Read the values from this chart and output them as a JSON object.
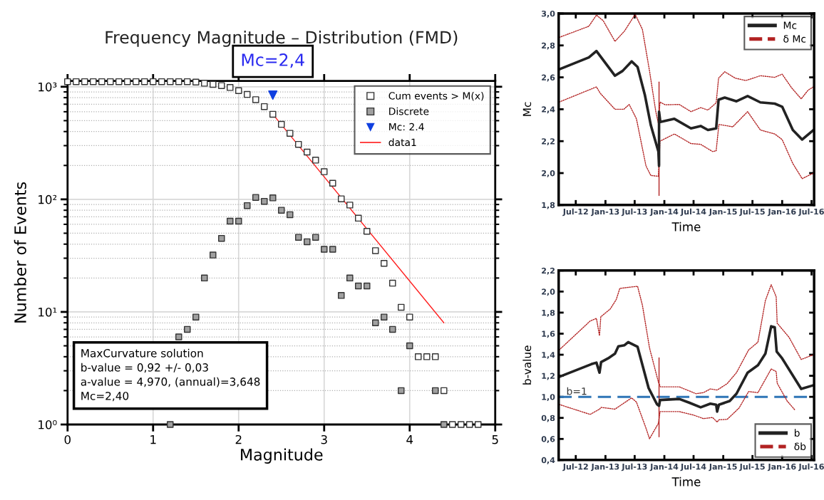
{
  "chart_data": [
    {
      "type": "scatter",
      "title": "Frequency Magnitude – Distribution (FMD)",
      "xlabel": "Magnitude",
      "ylabel": "Number of Events",
      "xlim": [
        0,
        5
      ],
      "xticks": [
        0,
        1,
        2,
        3,
        4,
        5
      ],
      "ylim": [
        1,
        1125
      ],
      "yticks": [
        {
          "value": 1,
          "label": "10⁰"
        },
        {
          "value": 10,
          "label": "10¹"
        },
        {
          "value": 100,
          "label": "10²"
        },
        {
          "value": 1000,
          "label": "10³"
        }
      ],
      "log": "y",
      "grid": true,
      "legend": "top right",
      "series": [
        {
          "name": "Cum events > M(x)",
          "type": "scatter",
          "marker": "square",
          "color": "#ffffff",
          "x": [
            0.0,
            0.1,
            0.2,
            0.3,
            0.4,
            0.5,
            0.6,
            0.7,
            0.8,
            0.9,
            1.0,
            1.1,
            1.2,
            1.3,
            1.4,
            1.5,
            1.6,
            1.7,
            1.8,
            1.9,
            2.0,
            2.1,
            2.2,
            2.3,
            2.4,
            2.5,
            2.6,
            2.7,
            2.8,
            2.9,
            3.0,
            3.1,
            3.2,
            3.3,
            3.4,
            3.5,
            3.6,
            3.7,
            3.8,
            3.9,
            4.0,
            4.1,
            4.2,
            4.3,
            4.4,
            4.5,
            4.6,
            4.7,
            4.8
          ],
          "values": [
            1110,
            1110,
            1110,
            1110,
            1110,
            1110,
            1110,
            1110,
            1110,
            1110,
            1110,
            1110,
            1110,
            1110,
            1110,
            1100,
            1076,
            1050,
            1024,
            985,
            924,
            855,
            768,
            666,
            570,
            464,
            386,
            308,
            263,
            223,
            176,
            139,
            101,
            89,
            68,
            52,
            35,
            27,
            18,
            11,
            9,
            4,
            4,
            4,
            2,
            1,
            1,
            1,
            1
          ]
        },
        {
          "name": "Discrete",
          "type": "scatter",
          "marker": "square",
          "color": "#a0a0a0",
          "x": [
            1.2,
            1.3,
            1.4,
            1.5,
            1.6,
            1.7,
            1.8,
            1.9,
            2.0,
            2.1,
            2.2,
            2.3,
            2.4,
            2.5,
            2.6,
            2.7,
            2.8,
            2.9,
            3.0,
            3.1,
            3.2,
            3.3,
            3.4,
            3.5,
            3.6,
            3.7,
            3.8,
            3.9,
            4.0,
            4.3,
            4.4
          ],
          "values": [
            1,
            6,
            7,
            9,
            20,
            32,
            45,
            64,
            64,
            88,
            104,
            96,
            103,
            80,
            73,
            46,
            42,
            46,
            36,
            36,
            14,
            20,
            17,
            17,
            8,
            9,
            7,
            2,
            5,
            2,
            1
          ]
        },
        {
          "name": "Mc: 2.4",
          "type": "scatter",
          "marker": "triangle",
          "color": "#1040e0",
          "x": [
            2.4
          ],
          "values": [
            842
          ]
        },
        {
          "name": "data1",
          "type": "line",
          "color": "#ff2020",
          "x": [
            2.4,
            4.4
          ],
          "values": [
            570,
            8
          ]
        }
      ],
      "annotations": [
        {
          "text": "Mc=2,4",
          "x": 2.4,
          "y": 842
        },
        "MaxCurvature solution\nb-value = 0,92 +/- 0,03\na-value = 4,970, (annual)=3,648\nMc=2,40"
      ]
    },
    {
      "type": "line",
      "xlabel": "Time",
      "ylabel": "Mc",
      "xlim": [
        "2012-03-17",
        "2016-07-17"
      ],
      "xticks": [
        {
          "value": "2012-07-01",
          "label": "Jul-12"
        },
        {
          "value": "2013-01-01",
          "label": "Jan-13"
        },
        {
          "value": "2013-07-01",
          "label": "Jul-13"
        },
        {
          "value": "2014-01-01",
          "label": "Jan-14"
        },
        {
          "value": "2014-07-01",
          "label": "Jul-14"
        },
        {
          "value": "2015-01-01",
          "label": "Jan-15"
        },
        {
          "value": "2015-07-01",
          "label": "Jul-15"
        },
        {
          "value": "2016-01-01",
          "label": "Jan-16"
        },
        {
          "value": "2016-07-01",
          "label": "Jul-16"
        }
      ],
      "ylim": [
        1.8,
        3.0
      ],
      "yticks": [
        {
          "value": 1.8,
          "label": "1,8"
        },
        {
          "value": 2.0,
          "label": "2,0"
        },
        {
          "value": 2.2,
          "label": "2,2"
        },
        {
          "value": 2.4,
          "label": "2,4"
        },
        {
          "value": 2.6,
          "label": "2,6"
        },
        {
          "value": 2.8,
          "label": "2,8"
        },
        {
          "value": 3.0,
          "label": "3,0"
        }
      ],
      "legend": "top right",
      "series": [
        {
          "type": "line",
          "line_style": "dotted",
          "color": "#b22222",
          "x": [
            "2012-03-20",
            "2012-11-06",
            "2012-11-30",
            "2013-03-01",
            "2013-04-25",
            "2013-05-28",
            "2013-07-12",
            "2013-09-09",
            "2013-10-09",
            "2013-11-25",
            "2013-12-05",
            "2014-03-04",
            "2014-06-15",
            "2014-08-14",
            "2014-10-27",
            "2014-11-18",
            "2014-12-05",
            "2015-03-01",
            "2015-06-01",
            "2015-08-19",
            "2015-11-16",
            "2016-01-01",
            "2016-03-07",
            "2016-05-04",
            "2016-07-13"
          ],
          "values": [
            2.445,
            2.54,
            2.5,
            2.4,
            2.4,
            2.43,
            2.34,
            2.045,
            1.985,
            1.98,
            2.2,
            2.245,
            2.185,
            2.18,
            2.135,
            2.14,
            2.305,
            2.29,
            2.385,
            2.27,
            2.245,
            2.21,
            2.06,
            1.965,
            2.0
          ]
        },
        {
          "name": "δ Mc",
          "type": "line",
          "line_style": "dotted",
          "color": "#b22222",
          "x": [
            "2012-03-20",
            "2012-09-20",
            "2012-11-06",
            "2012-12-18",
            "2013-03-01",
            "2013-04-29",
            "2013-07-04",
            "2013-08-18",
            "2013-10-01",
            "2013-11-09",
            "2013-11-25",
            "2013-12-05",
            "2014-01-06",
            "2014-04-03",
            "2014-06-15",
            "2014-08-14",
            "2014-09-28",
            "2014-11-18",
            "2014-12-03",
            "2015-01-10",
            "2015-03-16",
            "2015-05-21",
            "2015-08-19",
            "2015-11-16",
            "2016-01-01",
            "2016-02-28",
            "2016-04-28",
            "2016-06-10",
            "2016-07-13"
          ],
          "values": [
            2.85,
            2.92,
            2.99,
            2.955,
            2.825,
            2.89,
            2.995,
            2.9,
            2.64,
            2.385,
            2.31,
            2.445,
            2.428,
            2.43,
            2.385,
            2.41,
            2.395,
            2.44,
            2.595,
            2.635,
            2.595,
            2.58,
            2.61,
            2.6,
            2.62,
            2.535,
            2.465,
            2.52,
            2.54
          ]
        },
        {
          "type": "line",
          "color": "#b22222",
          "x": [
            "2013-11-29",
            "2013-11-29"
          ],
          "values": [
            1.86,
            2.57
          ]
        },
        {
          "name": "Mc",
          "type": "line",
          "line_style": "solid",
          "color": "#222222",
          "x": [
            "2012-03-20",
            "2012-09-20",
            "2012-11-06",
            "2013-03-01",
            "2013-04-17",
            "2013-06-12",
            "2013-07-19",
            "2013-09-02",
            "2013-10-09",
            "2013-11-25",
            "2013-11-29",
            "2013-11-29",
            "2013-12-07",
            "2014-03-04",
            "2014-06-15",
            "2014-08-14",
            "2014-09-28",
            "2014-11-18",
            "2014-12-03",
            "2015-01-10",
            "2015-03-24",
            "2015-06-01",
            "2015-08-19",
            "2015-11-16",
            "2016-01-01",
            "2016-03-07",
            "2016-05-04",
            "2016-07-13"
          ],
          "values": [
            2.65,
            2.725,
            2.765,
            2.61,
            2.64,
            2.7,
            2.665,
            2.49,
            2.3,
            2.135,
            2.045,
            2.385,
            2.32,
            2.34,
            2.28,
            2.295,
            2.27,
            2.28,
            2.46,
            2.473,
            2.45,
            2.483,
            2.443,
            2.435,
            2.416,
            2.27,
            2.21,
            2.27
          ]
        }
      ]
    },
    {
      "type": "line",
      "xlabel": "Time",
      "ylabel": "b-value",
      "xlim": [
        "2012-03-17",
        "2016-07-17"
      ],
      "xticks": [
        {
          "value": "2012-07-01",
          "label": "Jul-12"
        },
        {
          "value": "2013-01-01",
          "label": "Jan-13"
        },
        {
          "value": "2013-07-01",
          "label": "Jul-13"
        },
        {
          "value": "2014-01-01",
          "label": "Jan-14"
        },
        {
          "value": "2014-07-01",
          "label": "Jul-14"
        },
        {
          "value": "2015-01-01",
          "label": "Jan-15"
        },
        {
          "value": "2015-07-01",
          "label": "Jul-15"
        },
        {
          "value": "2016-01-01",
          "label": "Jan-16"
        },
        {
          "value": "2016-07-01",
          "label": "Jul-16"
        }
      ],
      "ylim": [
        0.4,
        2.2
      ],
      "yticks": [
        {
          "value": 0.4,
          "label": "0,4"
        },
        {
          "value": 0.6,
          "label": "0,6"
        },
        {
          "value": 0.8,
          "label": "0,8"
        },
        {
          "value": 1.0,
          "label": "1,0"
        },
        {
          "value": 1.2,
          "label": "1,2"
        },
        {
          "value": 1.4,
          "label": "1,4"
        },
        {
          "value": 1.6,
          "label": "1,6"
        },
        {
          "value": 1.8,
          "label": "1,8"
        },
        {
          "value": 2.0,
          "label": "2,0"
        },
        {
          "value": 2.2,
          "label": "2,2"
        }
      ],
      "legend": "bottom right",
      "ref_lines": [
        {
          "axis": "y",
          "value": 1.0,
          "label": "b=1",
          "color": "#2e75b6",
          "line_style": "dashed"
        }
      ],
      "series": [
        {
          "type": "line",
          "line_style": "dotted",
          "color": "#b22222",
          "x": [
            "2012-03-20",
            "2012-09-28",
            "2012-11-25",
            "2012-12-05",
            "2013-03-01",
            "2013-06-12",
            "2013-07-12",
            "2013-09-09",
            "2013-10-01",
            "2013-11-25",
            "2013-12-05",
            "2014-04-03",
            "2014-07-01",
            "2014-08-31",
            "2014-10-27",
            "2014-11-24",
            "2014-12-05",
            "2015-01-25",
            "2015-04-09",
            "2015-06-07",
            "2015-08-04",
            "2015-10-25",
            "2015-11-25",
            "2015-12-01",
            "2016-02-01",
            "2016-03-22"
          ],
          "values": [
            0.928,
            0.833,
            0.883,
            0.9,
            0.883,
            0.99,
            0.95,
            0.703,
            0.602,
            0.748,
            0.86,
            0.86,
            0.827,
            0.793,
            0.804,
            0.76,
            0.782,
            0.786,
            0.894,
            1.05,
            1.04,
            1.265,
            1.24,
            1.13,
            0.96,
            0.872
          ]
        },
        {
          "name": "δb",
          "type": "line",
          "line_style": "dotted",
          "color": "#b22222",
          "x": [
            "2012-03-20",
            "2012-09-28",
            "2012-11-06",
            "2012-11-25",
            "2012-12-03",
            "2013-01-31",
            "2013-03-09",
            "2013-03-31",
            "2013-05-22",
            "2013-07-19",
            "2013-08-18",
            "2013-10-01",
            "2013-11-25",
            "2013-12-07",
            "2014-04-03",
            "2014-07-16",
            "2014-08-31",
            "2014-10-13",
            "2014-11-24",
            "2014-12-05",
            "2015-01-25",
            "2015-03-24",
            "2015-06-07",
            "2015-08-04",
            "2015-09-19",
            "2015-10-25",
            "2015-11-25",
            "2015-12-01",
            "2016-02-13",
            "2016-04-28",
            "2016-07-13"
          ],
          "values": [
            1.445,
            1.72,
            1.745,
            1.58,
            1.76,
            1.835,
            1.925,
            2.03,
            2.04,
            2.05,
            1.87,
            1.465,
            1.14,
            1.095,
            1.095,
            1.03,
            1.04,
            1.075,
            1.065,
            1.075,
            1.125,
            1.23,
            1.445,
            1.52,
            1.915,
            2.065,
            1.95,
            1.7,
            1.565,
            1.355,
            1.4
          ]
        },
        {
          "type": "line",
          "color": "#b22222",
          "x": [
            "2013-11-29",
            "2013-11-29"
          ],
          "values": [
            0.62,
            1.37
          ]
        },
        {
          "name": "b",
          "type": "line",
          "line_style": "solid",
          "color": "#222222",
          "x": [
            "2012-03-20",
            "2012-10-05",
            "2012-11-06",
            "2012-11-25",
            "2012-12-05",
            "2013-01-17",
            "2013-03-01",
            "2013-03-22",
            "2013-04-29",
            "2013-05-22",
            "2013-07-19",
            "2013-09-25",
            "2013-11-16",
            "2013-11-29",
            "2013-12-05",
            "2014-04-03",
            "2014-06-03",
            "2014-08-14",
            "2014-10-13",
            "2014-11-18",
            "2014-11-24",
            "2014-12-05",
            "2015-02-10",
            "2015-03-24",
            "2015-06-01",
            "2015-08-04",
            "2015-09-19",
            "2015-10-25",
            "2015-11-16",
            "2015-11-28",
            "2016-01-01",
            "2016-04-28",
            "2016-07-13"
          ],
          "values": [
            1.19,
            1.31,
            1.325,
            1.23,
            1.33,
            1.365,
            1.41,
            1.48,
            1.49,
            1.52,
            1.475,
            1.085,
            0.93,
            0.915,
            0.97,
            0.98,
            0.945,
            0.9,
            0.935,
            0.925,
            0.86,
            0.925,
            0.96,
            1.03,
            1.23,
            1.3,
            1.41,
            1.67,
            1.66,
            1.43,
            1.365,
            1.075,
            1.11
          ]
        }
      ]
    }
  ]
}
